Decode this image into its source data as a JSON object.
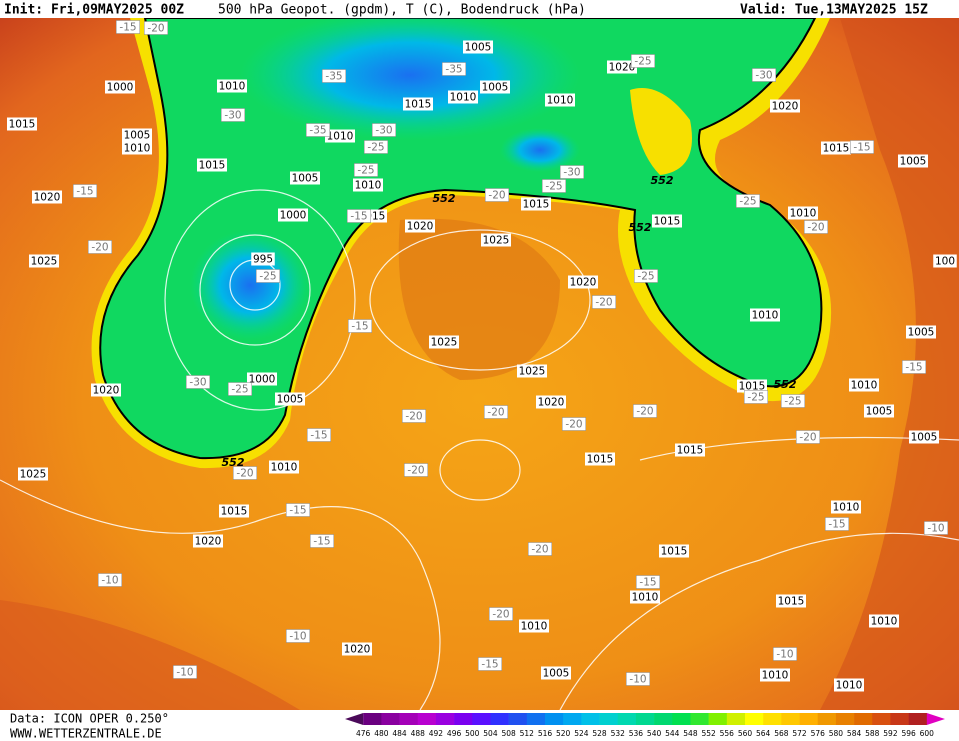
{
  "header": {
    "init": "Init: Fri,09MAY2025 00Z",
    "title": "500 hPa Geopot. (gpdm), T (C), Bodendruck (hPa)",
    "valid": "Valid: Tue,13MAY2025 15Z"
  },
  "footer": {
    "data": "Data: ICON OPER 0.250°",
    "site": "WWW.WETTERZENTRALE.DE"
  },
  "colorbar": {
    "labels": [
      476,
      480,
      484,
      488,
      492,
      496,
      500,
      504,
      508,
      512,
      516,
      520,
      524,
      528,
      532,
      536,
      540,
      544,
      548,
      552,
      556,
      560,
      564,
      568,
      572,
      576,
      580,
      584,
      588,
      592,
      596,
      600
    ],
    "colors": [
      "#4b0a5a",
      "#6a0080",
      "#8a00a0",
      "#a400b8",
      "#b800d0",
      "#9a00e0",
      "#7a00f0",
      "#5a10ff",
      "#3030ff",
      "#2050f0",
      "#1070f0",
      "#0090f0",
      "#00a8f0",
      "#00c0e8",
      "#00d0d0",
      "#00d8b0",
      "#00d890",
      "#00d870",
      "#00e050",
      "#30e830",
      "#80f000",
      "#d0f000",
      "#ffff00",
      "#ffe000",
      "#ffc800",
      "#ffb000",
      "#f09800",
      "#e88000",
      "#e06a00",
      "#d85010",
      "#c83818",
      "#b02020",
      "#901818"
    ]
  },
  "map_labels": {
    "pressure": [
      "1005",
      "1000",
      "1010",
      "1015",
      "1005",
      "1010",
      "1015",
      "1010",
      "1015",
      "1010",
      "1005",
      "1010",
      "1020",
      "1020",
      "1015",
      "1005",
      "1005",
      "1010",
      "1015",
      "1020",
      "1015",
      "1025",
      "1000",
      "995",
      "1020",
      "1025",
      "1010",
      "1015",
      "1020",
      "1010",
      "1000",
      "1005",
      "1020",
      "1025",
      "1025",
      "1020",
      "1015",
      "1010",
      "1005",
      "1005",
      "1005",
      "1015",
      "1015",
      "1010",
      "1025",
      "1015",
      "1010",
      "1020",
      "1015",
      "1010",
      "1015",
      "1010",
      "1020",
      "1005",
      "1010",
      "1010",
      "1010",
      "100"
    ],
    "temperature": [
      "-15",
      "-20",
      "-35",
      "-35",
      "-25",
      "-30",
      "-30",
      "-35",
      "-30",
      "-25",
      "-25",
      "-15",
      "-20",
      "-25",
      "-30",
      "-25",
      "-15",
      "-15",
      "-20",
      "-20",
      "-25",
      "-25",
      "-20",
      "-15",
      "-30",
      "-25",
      "-20",
      "-20",
      "-20",
      "-20",
      "-25",
      "-25",
      "-15",
      "-20",
      "-15",
      "-20",
      "-20",
      "-15",
      "-15",
      "-20",
      "-15",
      "-10",
      "-10",
      "-15",
      "-20",
      "-10",
      "-15",
      "-10",
      "-10",
      "-10"
    ],
    "geopotential": [
      "552",
      "552",
      "552",
      "552",
      "552"
    ]
  }
}
